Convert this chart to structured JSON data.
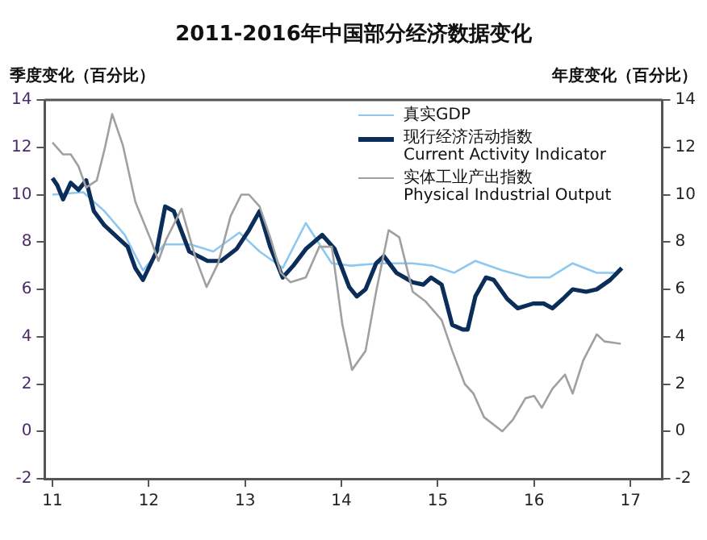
{
  "chart_data": {
    "type": "line",
    "title": "2011-2016年中国部分经济数据变化",
    "ylabel": "季度变化（百分比）",
    "y2label": "年度变化（百分比）",
    "xlim": [
      10.92,
      17.33
    ],
    "xticks": [
      11,
      12,
      13,
      14,
      15,
      16,
      17
    ],
    "ylim": [
      -2,
      14
    ],
    "yticks": [
      -2,
      0,
      2,
      4,
      6,
      8,
      10,
      12,
      14
    ],
    "y2lim": [
      -2,
      14
    ],
    "y2ticks": [
      -2,
      0,
      2,
      4,
      6,
      8,
      10,
      12,
      14
    ],
    "grid": false,
    "legend": "top right",
    "marker": "none",
    "line_style": "solid",
    "series": [
      {
        "name": "真实GDP",
        "color": "#8ec8f0",
        "x": [
          11.0,
          11.32,
          11.54,
          11.75,
          11.94,
          12.16,
          12.43,
          12.67,
          12.94,
          13.15,
          13.39,
          13.63,
          13.9,
          14.1,
          14.4,
          14.74,
          14.95,
          15.17,
          15.39,
          15.67,
          15.94,
          16.16,
          16.4,
          16.65,
          16.85
        ],
        "values": [
          10.0,
          10.1,
          9.3,
          8.3,
          6.8,
          7.9,
          7.9,
          7.6,
          8.4,
          7.6,
          6.9,
          8.8,
          7.1,
          7.0,
          7.1,
          7.1,
          7.0,
          6.7,
          7.2,
          6.8,
          6.5,
          6.5,
          7.1,
          6.7,
          6.7
        ]
      },
      {
        "name": "现行经济活动指数\nCurrent Activity Indicator",
        "color": "#0b2d5a",
        "x": [
          11.0,
          11.05,
          11.11,
          11.19,
          11.27,
          11.35,
          11.43,
          11.54,
          11.7,
          11.78,
          11.86,
          11.94,
          12.08,
          12.17,
          12.26,
          12.42,
          12.61,
          12.75,
          12.91,
          13.04,
          13.15,
          13.26,
          13.39,
          13.5,
          13.63,
          13.8,
          13.93,
          14.08,
          14.16,
          14.25,
          14.36,
          14.44,
          14.57,
          14.74,
          14.85,
          14.93,
          15.04,
          15.15,
          15.26,
          15.31,
          15.39,
          15.5,
          15.58,
          15.72,
          15.83,
          15.99,
          16.1,
          16.19,
          16.3,
          16.4,
          16.54,
          16.65,
          16.79,
          16.91
        ],
        "values": [
          10.7,
          10.4,
          9.8,
          10.5,
          10.2,
          10.6,
          9.3,
          8.7,
          8.1,
          7.8,
          6.9,
          6.4,
          7.6,
          9.5,
          9.3,
          7.6,
          7.2,
          7.2,
          7.7,
          8.5,
          9.3,
          7.8,
          6.5,
          7.0,
          7.7,
          8.3,
          7.7,
          6.1,
          5.7,
          6.0,
          7.1,
          7.4,
          6.7,
          6.3,
          6.2,
          6.5,
          6.2,
          4.5,
          4.3,
          4.3,
          5.7,
          6.5,
          6.4,
          5.6,
          5.2,
          5.4,
          5.4,
          5.2,
          5.6,
          6.0,
          5.9,
          6.0,
          6.4,
          6.9
        ]
      },
      {
        "name": "实体工业产出指数\nPhysical Industrial Output",
        "color": "#a0a0a0",
        "x": [
          11.0,
          11.11,
          11.19,
          11.27,
          11.35,
          11.46,
          11.54,
          11.62,
          11.73,
          11.86,
          12.02,
          12.1,
          12.18,
          12.34,
          12.48,
          12.6,
          12.72,
          12.85,
          12.96,
          13.04,
          13.15,
          13.26,
          13.37,
          13.47,
          13.63,
          13.77,
          13.9,
          14.01,
          14.11,
          14.25,
          14.36,
          14.49,
          14.6,
          14.74,
          14.87,
          15.04,
          15.15,
          15.28,
          15.37,
          15.48,
          15.67,
          15.78,
          15.91,
          16.0,
          16.08,
          16.19,
          16.32,
          16.4,
          16.51,
          16.65,
          16.73,
          16.9
        ],
        "values": [
          12.2,
          11.7,
          11.7,
          11.2,
          10.3,
          10.6,
          11.9,
          13.4,
          12.1,
          9.7,
          8.1,
          7.2,
          8.1,
          9.4,
          7.4,
          6.1,
          7.1,
          9.1,
          10.0,
          10.0,
          9.5,
          8.2,
          6.7,
          6.3,
          6.5,
          7.8,
          7.8,
          4.5,
          2.6,
          3.4,
          5.9,
          8.5,
          8.2,
          5.9,
          5.5,
          4.7,
          3.4,
          2.0,
          1.6,
          0.6,
          0.0,
          0.5,
          1.4,
          1.5,
          1.0,
          1.8,
          2.4,
          1.6,
          3.0,
          4.1,
          3.8,
          3.7
        ]
      }
    ]
  }
}
